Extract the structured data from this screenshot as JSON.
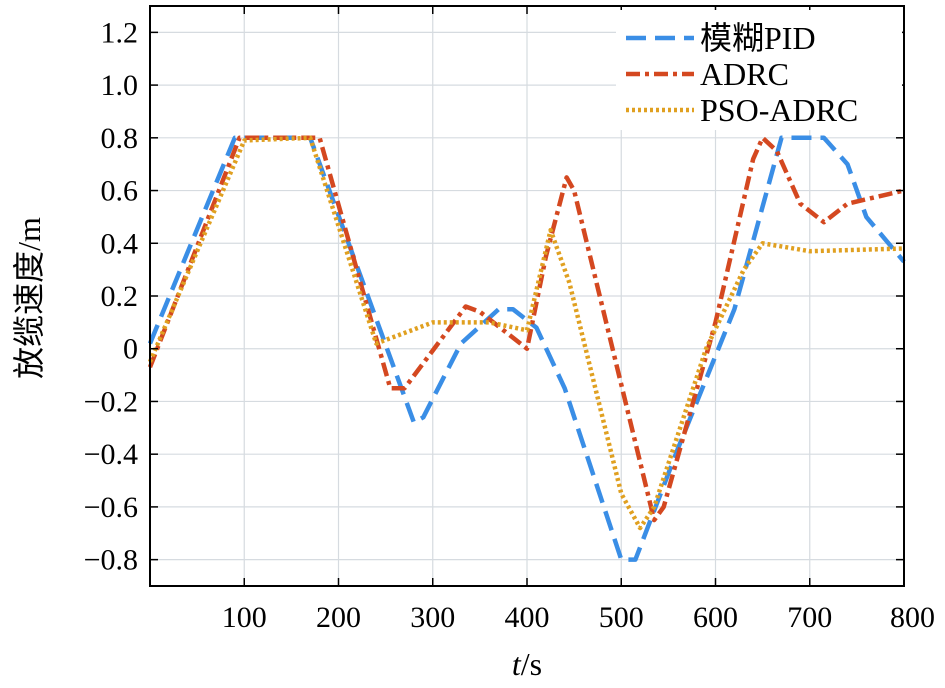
{
  "chart_data": {
    "type": "line",
    "title": "",
    "xlabel_italic": "t",
    "xlabel_unit": "/s",
    "ylabel": "放缆速度/m",
    "xlim": [
      0,
      800
    ],
    "ylim": [
      -0.9,
      1.3
    ],
    "xticks": [
      100,
      200,
      300,
      400,
      500,
      600,
      700,
      800
    ],
    "yticks": [
      1.2,
      1.0,
      0.8,
      0.6,
      0.4,
      0.2,
      0,
      -0.2,
      -0.4,
      -0.6,
      -0.8
    ],
    "ytick_labels": [
      "1.2",
      "1.0",
      "0.8",
      "0.6",
      "0.4",
      "0.2",
      "0",
      "−0.2",
      "−0.4",
      "−0.6",
      "−0.8"
    ],
    "grid": true,
    "legend_position": "top-right",
    "series": [
      {
        "name": "模糊PID",
        "color": "#3a8ee6",
        "style": "dashed",
        "points": [
          [
            0,
            0.02
          ],
          [
            90,
            0.8
          ],
          [
            170,
            0.8
          ],
          [
            280,
            -0.28
          ],
          [
            290,
            -0.26
          ],
          [
            330,
            0.02
          ],
          [
            370,
            0.15
          ],
          [
            385,
            0.15
          ],
          [
            410,
            0.08
          ],
          [
            440,
            -0.15
          ],
          [
            500,
            -0.8
          ],
          [
            515,
            -0.8
          ],
          [
            560,
            -0.38
          ],
          [
            620,
            0.15
          ],
          [
            670,
            0.8
          ],
          [
            715,
            0.8
          ],
          [
            740,
            0.7
          ],
          [
            760,
            0.5
          ],
          [
            800,
            0.33
          ]
        ]
      },
      {
        "name": "ADRC",
        "color": "#d44820",
        "style": "dashdot",
        "points": [
          [
            0,
            -0.07
          ],
          [
            95,
            0.8
          ],
          [
            180,
            0.8
          ],
          [
            255,
            -0.15
          ],
          [
            270,
            -0.15
          ],
          [
            335,
            0.16
          ],
          [
            350,
            0.14
          ],
          [
            400,
            0.0
          ],
          [
            420,
            0.35
          ],
          [
            442,
            0.65
          ],
          [
            450,
            0.6
          ],
          [
            535,
            -0.65
          ],
          [
            545,
            -0.6
          ],
          [
            600,
            0.1
          ],
          [
            640,
            0.72
          ],
          [
            650,
            0.8
          ],
          [
            665,
            0.75
          ],
          [
            690,
            0.55
          ],
          [
            715,
            0.48
          ],
          [
            740,
            0.55
          ],
          [
            800,
            0.6
          ]
        ]
      },
      {
        "name": "PSO-ADRC",
        "color": "#e0a020",
        "style": "dotted",
        "points": [
          [
            0,
            -0.05
          ],
          [
            100,
            0.79
          ],
          [
            170,
            0.8
          ],
          [
            240,
            0.02
          ],
          [
            300,
            0.1
          ],
          [
            360,
            0.1
          ],
          [
            400,
            0.07
          ],
          [
            425,
            0.45
          ],
          [
            445,
            0.25
          ],
          [
            500,
            -0.55
          ],
          [
            520,
            -0.68
          ],
          [
            535,
            -0.6
          ],
          [
            590,
            0.0
          ],
          [
            630,
            0.3
          ],
          [
            650,
            0.4
          ],
          [
            700,
            0.37
          ],
          [
            800,
            0.38
          ]
        ]
      }
    ]
  }
}
